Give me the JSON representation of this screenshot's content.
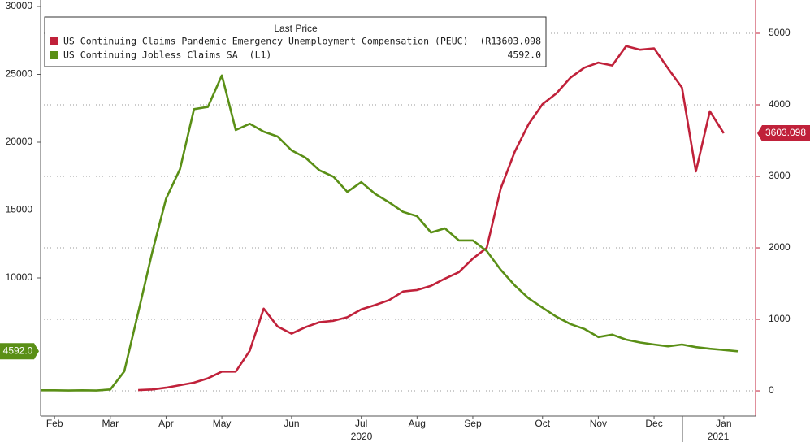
{
  "chart_data": {
    "type": "line",
    "legend_title": "Last Price",
    "categories": [
      null,
      "Feb",
      null,
      null,
      null,
      "Mar",
      null,
      null,
      null,
      "Apr",
      null,
      null,
      null,
      "May",
      null,
      null,
      null,
      null,
      "Jun",
      null,
      null,
      null,
      null,
      "Jul",
      null,
      null,
      null,
      "Aug",
      null,
      null,
      null,
      "Sep",
      null,
      null,
      null,
      null,
      "Oct",
      null,
      null,
      null,
      "Nov",
      null,
      null,
      null,
      "Dec",
      null,
      null,
      null,
      null,
      "Jan",
      null
    ],
    "year_labels": [
      "2020",
      "2021"
    ],
    "series": [
      {
        "name": "US Continuing Claims Pandemic Emergency Unemployment Compensation (PEUC)",
        "axis_label": "(R1)",
        "axis": "y2",
        "color": "#c0213a",
        "last_label": "3603.098",
        "values": [
          null,
          null,
          null,
          null,
          null,
          null,
          null,
          10,
          20,
          45,
          80,
          115,
          175,
          270,
          270,
          560,
          1150,
          900,
          800,
          890,
          960,
          980,
          1030,
          1140,
          1200,
          1270,
          1390,
          1410,
          1470,
          1570,
          1660,
          1850,
          2000,
          2830,
          3340,
          3730,
          4010,
          4160,
          4380,
          4520,
          4590,
          4550,
          4820,
          4770,
          4790,
          4510,
          4240,
          3070,
          3910,
          3603.098,
          null
        ]
      },
      {
        "name": "US Continuing Jobless Claims SA",
        "axis_label": "(L1)",
        "color": "#5a8f16",
        "last_label": "4592.0",
        "values": [
          1720,
          1720,
          1700,
          1720,
          1700,
          1780,
          3110,
          7440,
          11870,
          15830,
          18020,
          22440,
          22600,
          24920,
          20900,
          21360,
          20780,
          20420,
          19400,
          18860,
          17930,
          17460,
          16340,
          17060,
          16190,
          15570,
          14860,
          14550,
          13350,
          13650,
          12760,
          12760,
          11980,
          10600,
          9460,
          8500,
          7800,
          7140,
          6600,
          6240,
          5640,
          5820,
          5450,
          5240,
          5090,
          4960,
          5090,
          4900,
          4780,
          4690,
          4592
        ]
      }
    ],
    "ylim": [
      -180,
      30480
    ],
    "yticks": [
      10000,
      15000,
      20000,
      25000,
      30000
    ],
    "y2lim": [
      -352,
      5466
    ],
    "y2ticks": [
      0,
      1000,
      2000,
      3000,
      4000,
      5000
    ],
    "grid": true
  }
}
